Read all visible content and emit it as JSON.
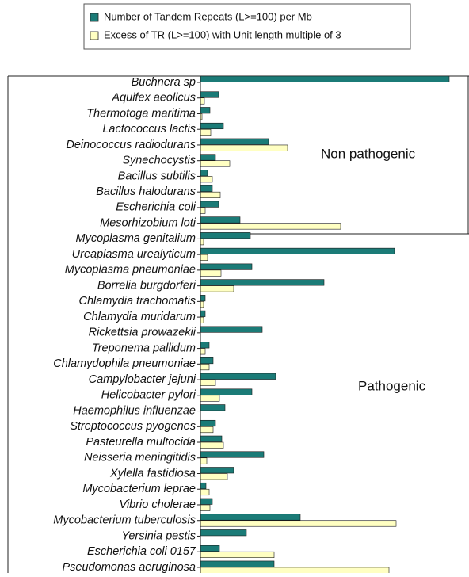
{
  "chart_data": {
    "type": "hbar",
    "categories": [
      "Buchnera sp",
      "Aquifex aeolicus",
      "Thermotoga maritima",
      "Lactococcus lactis",
      "Deinococcus radiodurans",
      "Synechocystis",
      "Bacillus subtilis",
      "Bacillus halodurans",
      "Escherichia coli",
      "Mesorhizobium loti",
      "Mycoplasma genitalium",
      "Ureaplasma urealyticum",
      "Mycoplasma pneumoniae",
      "Borrelia burgdorferi",
      "Chlamydia trachomatis",
      "Chlamydia muridarum",
      "Rickettsia prowazekii",
      "Treponema pallidum",
      "Chlamydophila pneumoniae",
      "Campylobacter jejuni",
      "Helicobacter pylori",
      "Haemophilus influenzae",
      "Streptococcus pyogenes",
      "Pasteurella multocida",
      "Neisseria meningitidis",
      "Xylella fastidiosa",
      "Mycobacterium leprae",
      "Vibrio cholerae",
      "Mycobacterium tuberculosis",
      "Yersinia pestis",
      "Escherichia coli 0157",
      "Pseudomonas aeruginosa"
    ],
    "series": [
      {
        "name": "Number of Tandem Repeats (L>=100) per Mb",
        "color": "#1b7b77",
        "values": [
          314,
          23,
          12,
          29,
          86,
          19,
          9,
          15,
          23,
          50,
          63,
          245,
          65,
          156,
          6,
          6,
          78,
          11,
          16,
          95,
          65,
          31,
          19,
          27,
          80,
          42,
          7,
          15,
          126,
          58,
          24,
          93
        ]
      },
      {
        "name": "Excess of TR (L>=100) with Unit length multiple of 3",
        "color": "#ffffc2",
        "values": [
          0,
          5,
          2,
          13,
          110,
          37,
          15,
          25,
          6,
          177,
          4,
          9,
          26,
          42,
          4,
          4,
          0,
          6,
          11,
          19,
          24,
          0,
          16,
          29,
          8,
          34,
          11,
          12,
          247,
          0,
          93,
          238
        ]
      }
    ],
    "annotations": [
      "Non pathogenic",
      "Pathogenic"
    ]
  }
}
